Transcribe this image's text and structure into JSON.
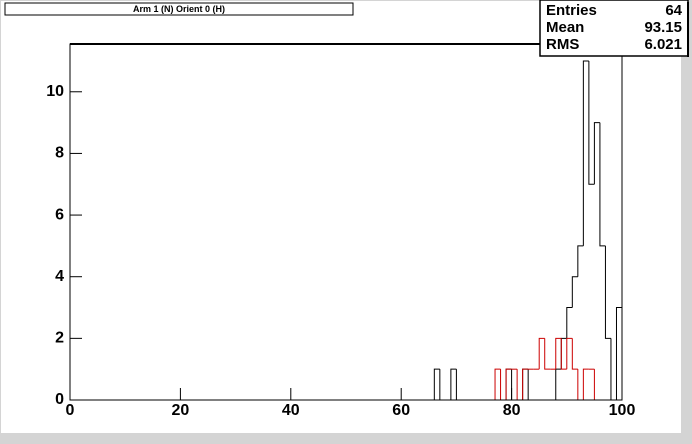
{
  "chart_data": {
    "type": "histogram",
    "title": "Arm 1 (N) Orient 0 (H)",
    "bins": [
      0,
      1,
      2,
      3,
      4,
      5,
      6,
      7,
      8,
      9,
      10,
      11,
      12,
      13,
      14,
      15,
      16,
      17,
      18,
      19,
      20,
      21,
      22,
      23,
      24,
      25,
      26,
      27,
      28,
      29,
      30,
      31,
      32,
      33,
      34,
      35,
      36,
      37,
      38,
      39,
      40,
      41,
      42,
      43,
      44,
      45,
      46,
      47,
      48,
      49,
      50,
      51,
      52,
      53,
      54,
      55,
      56,
      57,
      58,
      59,
      60,
      61,
      62,
      63,
      64,
      65,
      66,
      67,
      68,
      69,
      70,
      71,
      72,
      73,
      74,
      75,
      76,
      77,
      78,
      79,
      80,
      81,
      82,
      83,
      84,
      85,
      86,
      87,
      88,
      89,
      90,
      91,
      92,
      93,
      94,
      95,
      96,
      97,
      98,
      99,
      100
    ],
    "series": [
      {
        "color": "#000000",
        "values": [
          0,
          0,
          0,
          0,
          0,
          0,
          0,
          0,
          0,
          0,
          0,
          0,
          0,
          0,
          0,
          0,
          0,
          0,
          0,
          0,
          0,
          0,
          0,
          0,
          0,
          0,
          0,
          0,
          0,
          0,
          0,
          0,
          0,
          0,
          0,
          0,
          0,
          0,
          0,
          0,
          0,
          0,
          0,
          0,
          0,
          0,
          0,
          0,
          0,
          0,
          0,
          0,
          0,
          0,
          0,
          0,
          0,
          0,
          0,
          0,
          0,
          0,
          0,
          0,
          0,
          0,
          1,
          0,
          0,
          1,
          0,
          0,
          0,
          0,
          0,
          0,
          0,
          0,
          0,
          1,
          0,
          0,
          1,
          0,
          0,
          0,
          0,
          0,
          1,
          2,
          3,
          4,
          5,
          11,
          7,
          9,
          5,
          2,
          0,
          3
        ]
      },
      {
        "color": "#cc0000",
        "values": [
          0,
          0,
          0,
          0,
          0,
          0,
          0,
          0,
          0,
          0,
          0,
          0,
          0,
          0,
          0,
          0,
          0,
          0,
          0,
          0,
          0,
          0,
          0,
          0,
          0,
          0,
          0,
          0,
          0,
          0,
          0,
          0,
          0,
          0,
          0,
          0,
          0,
          0,
          0,
          0,
          0,
          0,
          0,
          0,
          0,
          0,
          0,
          0,
          0,
          0,
          0,
          0,
          0,
          0,
          0,
          0,
          0,
          0,
          0,
          0,
          0,
          0,
          0,
          0,
          0,
          0,
          0,
          0,
          0,
          0,
          0,
          0,
          0,
          0,
          0,
          0,
          0,
          1,
          0,
          1,
          1,
          0,
          1,
          1,
          1,
          2,
          1,
          1,
          2,
          1,
          2,
          1,
          0,
          1,
          1,
          0,
          0,
          0,
          0,
          0
        ]
      }
    ],
    "xlim": [
      0,
      100
    ],
    "ylim": [
      0,
      11.55
    ],
    "xticks": [
      0,
      20,
      40,
      60,
      80,
      100
    ],
    "yticks": [
      0,
      2,
      4,
      6,
      8,
      10
    ],
    "stats": [
      {
        "label": "Entries",
        "value": 64
      },
      {
        "label": "Mean",
        "value": 93.15
      },
      {
        "label": "RMS",
        "value": 6.021
      }
    ]
  }
}
